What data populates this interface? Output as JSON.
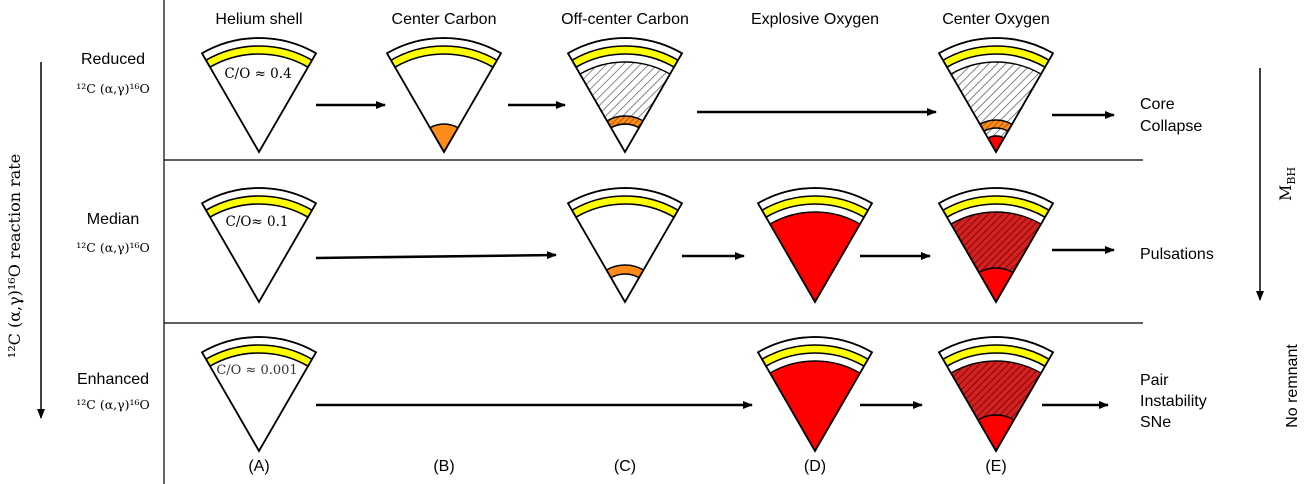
{
  "columns": [
    {
      "title": "Helium shell",
      "label": "(A)"
    },
    {
      "title": "Center Carbon",
      "label": "(B)"
    },
    {
      "title": "Off-center Carbon",
      "label": "(C)"
    },
    {
      "title": "Explosive Oxygen",
      "label": "(D)"
    },
    {
      "title": "Center Oxygen",
      "label": "(E)"
    }
  ],
  "rows": [
    {
      "name": "Reduced",
      "rate": "¹²C (α,γ)¹⁶O",
      "ratio": "C/O ≈ 0.4",
      "outcome": [
        "Core",
        "Collapse"
      ]
    },
    {
      "name": "Median",
      "rate": "¹²C (α,γ)¹⁶O",
      "ratio": "C/O≈ 0.1",
      "outcome": [
        "Pulsations"
      ]
    },
    {
      "name": "Enhanced",
      "rate": "¹²C (α,γ)¹⁶O",
      "ratio": "C/O ≈ 0.001",
      "outcome": [
        "Pair",
        "Instability",
        "SNe"
      ]
    }
  ],
  "left_axis_label": "¹²C (α,γ)¹⁶O reaction rate",
  "right_axis_label": "M_BH",
  "right_axis_label_main": "M",
  "right_axis_label_sub": "BH",
  "no_remnant_label": "No remnant",
  "colors": {
    "helium_shell": "#ffff00",
    "carbon": "#ff8c1a",
    "oxygen": "#ff0000",
    "oxygen_hatched": "#cc1111",
    "line": "#000000"
  }
}
